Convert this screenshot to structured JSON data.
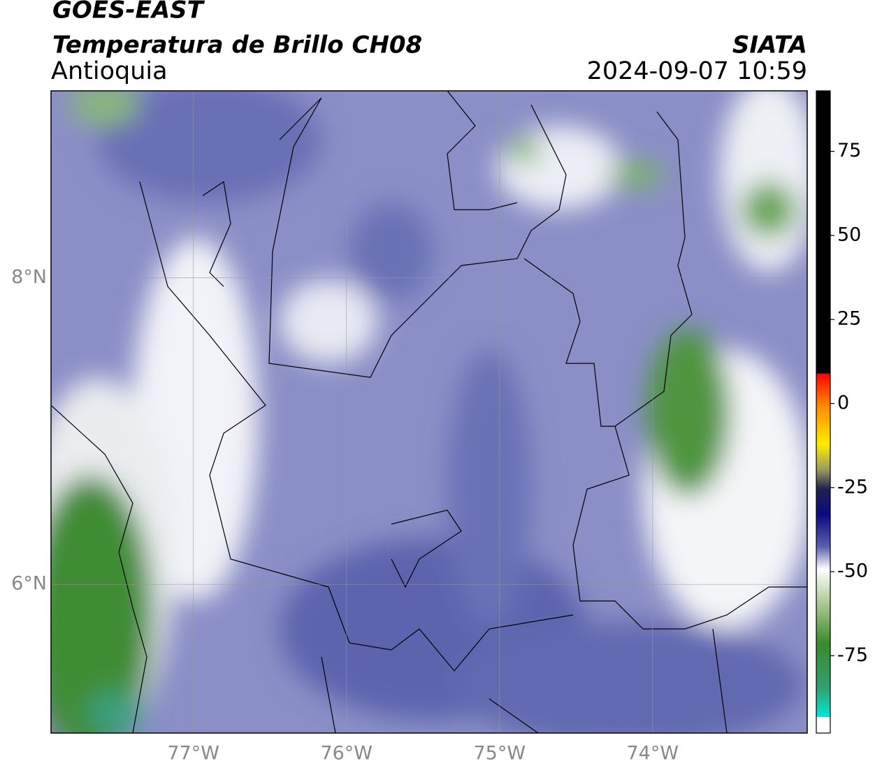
{
  "header": {
    "title": "GOES-EAST",
    "subtitle": "Temperatura de Brillo CH08",
    "region": "Antioquia",
    "source": "SIATA",
    "datetime": "2024-09-07 10:59"
  },
  "map": {
    "xlim": [
      -77.93,
      -72.99
    ],
    "ylim": [
      5.03,
      9.22
    ],
    "xticks": [
      {
        "value": -77,
        "label": "77°W"
      },
      {
        "value": -76,
        "label": "76°W"
      },
      {
        "value": -75,
        "label": "75°W"
      },
      {
        "value": -74,
        "label": "74°W"
      }
    ],
    "yticks": [
      {
        "value": 8,
        "label": "8°N"
      },
      {
        "value": 6,
        "label": "6°N"
      }
    ],
    "grid": true
  },
  "colorbar": {
    "lim": [
      -98,
      93
    ],
    "ticks": [
      75,
      50,
      25,
      0,
      -25,
      -50,
      -75
    ]
  }
}
